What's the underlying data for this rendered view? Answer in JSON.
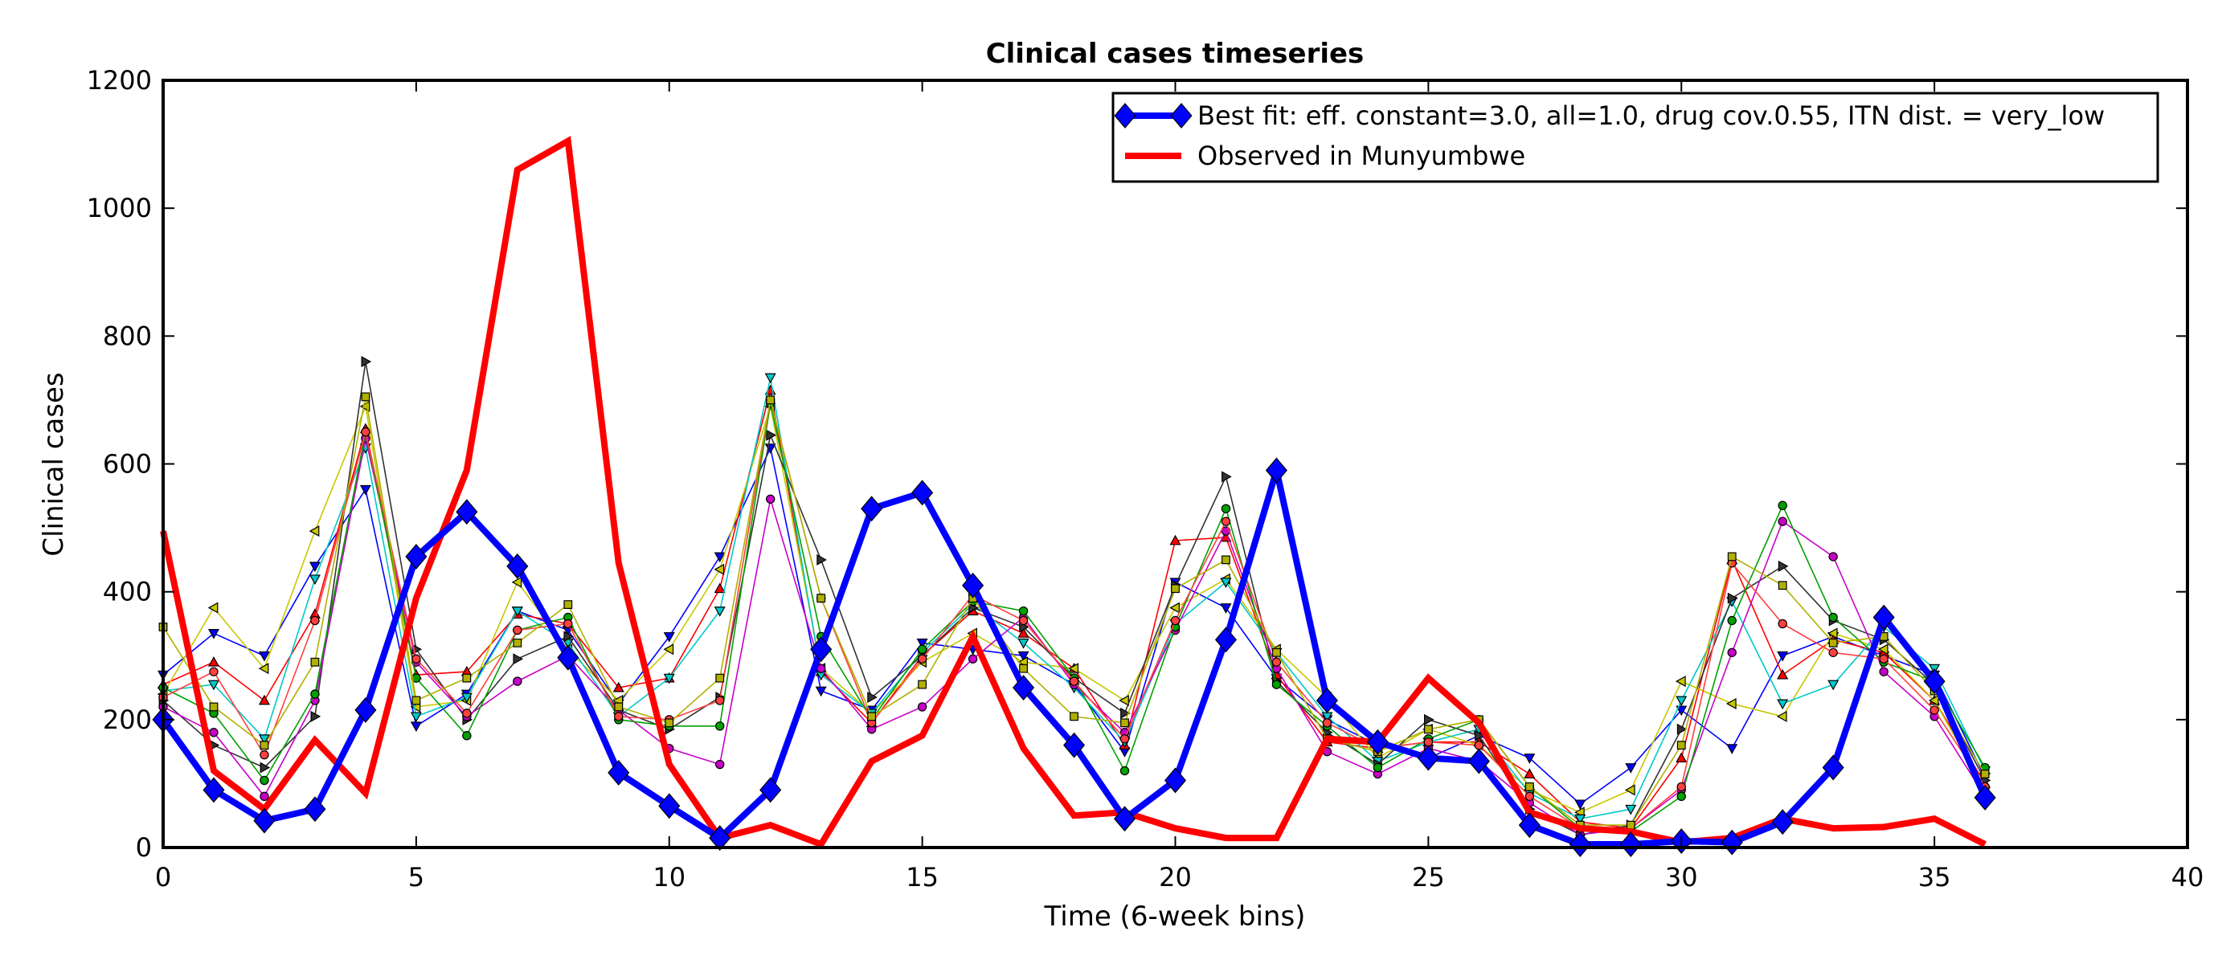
{
  "chart_data": {
    "type": "line",
    "title": "Clinical cases timeseries",
    "xlabel": "Time (6-week bins)",
    "ylabel": "Clinical cases",
    "xlim": [
      0,
      40
    ],
    "ylim": [
      0,
      1200
    ],
    "xticks": [
      0,
      5,
      10,
      15,
      20,
      25,
      30,
      35,
      40
    ],
    "yticks": [
      0,
      200,
      400,
      600,
      800,
      1000,
      1200
    ],
    "grid": false,
    "legend_position": "top-right",
    "series": [
      {
        "name": "Best fit: eff. constant=3.0, all=1.0, drug cov.0.55, ITN dist. = very_low",
        "color": "#0000ff",
        "marker": "diamond",
        "x": [
          0,
          1,
          2,
          3,
          4,
          5,
          6,
          7,
          8,
          9,
          10,
          11,
          12,
          13,
          14,
          15,
          16,
          17,
          18,
          19,
          20,
          21,
          22,
          23,
          24,
          25,
          26,
          27,
          28,
          29,
          30,
          31,
          32,
          33,
          34,
          35,
          36
        ],
        "values": [
          200,
          90,
          42,
          60,
          215,
          455,
          525,
          440,
          297,
          117,
          65,
          15,
          90,
          310,
          530,
          555,
          410,
          250,
          160,
          45,
          105,
          325,
          590,
          230,
          165,
          140,
          135,
          35,
          5,
          5,
          10,
          8,
          40,
          125,
          360,
          260,
          78
        ]
      },
      {
        "name": "Observed in Munyumbwe",
        "color": "#ff0000",
        "marker": "none",
        "x": [
          0,
          1,
          2,
          3,
          4,
          5,
          6,
          7,
          8,
          9,
          10,
          11,
          12,
          13,
          14,
          15,
          16,
          17,
          18,
          19,
          20,
          21,
          22,
          23,
          24,
          25,
          26,
          27,
          28,
          29,
          30,
          31,
          32,
          33,
          34,
          35,
          36
        ],
        "values": [
          495,
          120,
          60,
          168,
          85,
          390,
          590,
          1060,
          1105,
          445,
          130,
          15,
          35,
          5,
          135,
          175,
          330,
          155,
          50,
          55,
          30,
          15,
          15,
          170,
          165,
          265,
          195,
          55,
          30,
          25,
          8,
          15,
          45,
          30,
          32,
          45,
          5
        ]
      },
      {
        "color": "#0000ff",
        "marker": "tri_down",
        "x": [
          0,
          1,
          2,
          3,
          4,
          5,
          6,
          7,
          8,
          9,
          10,
          11,
          12,
          13,
          14,
          15,
          16,
          17,
          18,
          19,
          20,
          21,
          22,
          23,
          24,
          25,
          26,
          27,
          28,
          29,
          30,
          31,
          32,
          33,
          34,
          35,
          36
        ],
        "values": [
          270,
          335,
          300,
          440,
          560,
          190,
          240,
          370,
          340,
          225,
          330,
          455,
          625,
          245,
          215,
          320,
          310,
          300,
          255,
          150,
          415,
          375,
          265,
          200,
          160,
          140,
          175,
          140,
          68,
          125,
          215,
          155,
          300,
          330,
          300,
          270,
          110
        ]
      },
      {
        "color": "#ff0000",
        "marker": "tri_up",
        "x": [
          0,
          1,
          2,
          3,
          4,
          5,
          6,
          7,
          8,
          9,
          10,
          11,
          12,
          13,
          14,
          15,
          16,
          17,
          18,
          19,
          20,
          21,
          22,
          23,
          24,
          25,
          26,
          27,
          28,
          29,
          30,
          31,
          32,
          33,
          34,
          35,
          36
        ],
        "values": [
          255,
          290,
          230,
          365,
          655,
          270,
          275,
          365,
          350,
          250,
          265,
          405,
          715,
          275,
          195,
          300,
          370,
          335,
          280,
          160,
          480,
          485,
          270,
          165,
          155,
          165,
          165,
          115,
          40,
          30,
          140,
          450,
          270,
          325,
          305,
          230,
          100
        ]
      },
      {
        "color": "#c8c800",
        "marker": "tri_left",
        "x": [
          0,
          1,
          2,
          3,
          4,
          5,
          6,
          7,
          8,
          9,
          10,
          11,
          12,
          13,
          14,
          15,
          16,
          17,
          18,
          19,
          20,
          21,
          22,
          23,
          24,
          25,
          26,
          27,
          28,
          29,
          30,
          31,
          32,
          33,
          34,
          35,
          36
        ],
        "values": [
          240,
          375,
          280,
          495,
          690,
          220,
          230,
          415,
          310,
          230,
          310,
          435,
          690,
          280,
          210,
          290,
          335,
          290,
          280,
          230,
          375,
          420,
          310,
          235,
          140,
          185,
          160,
          90,
          55,
          90,
          260,
          225,
          205,
          335,
          310,
          230,
          90
        ]
      },
      {
        "color": "#00c8c8",
        "marker": "tri_down",
        "x": [
          0,
          1,
          2,
          3,
          4,
          5,
          6,
          7,
          8,
          9,
          10,
          11,
          12,
          13,
          14,
          15,
          16,
          17,
          18,
          19,
          20,
          21,
          22,
          23,
          24,
          25,
          26,
          27,
          28,
          29,
          30,
          31,
          32,
          33,
          34,
          35,
          36
        ],
        "values": [
          245,
          255,
          170,
          420,
          625,
          205,
          235,
          370,
          320,
          205,
          265,
          370,
          735,
          270,
          210,
          305,
          380,
          320,
          250,
          165,
          350,
          415,
          305,
          205,
          135,
          165,
          185,
          85,
          45,
          60,
          230,
          385,
          225,
          255,
          345,
          280,
          120
        ]
      },
      {
        "color": "#333333",
        "marker": "tri_right",
        "x": [
          0,
          1,
          2,
          3,
          4,
          5,
          6,
          7,
          8,
          9,
          10,
          11,
          12,
          13,
          14,
          15,
          16,
          17,
          18,
          19,
          20,
          21,
          22,
          23,
          24,
          25,
          26,
          27,
          28,
          29,
          30,
          31,
          32,
          33,
          34,
          35,
          36
        ],
        "values": [
          230,
          160,
          125,
          205,
          760,
          310,
          200,
          295,
          330,
          215,
          185,
          235,
          645,
          450,
          235,
          300,
          375,
          345,
          265,
          210,
          410,
          580,
          260,
          180,
          130,
          200,
          175,
          60,
          20,
          35,
          185,
          390,
          440,
          355,
          325,
          255,
          105
        ]
      },
      {
        "color": "#c800c8",
        "marker": "circle",
        "x": [
          0,
          1,
          2,
          3,
          4,
          5,
          6,
          7,
          8,
          9,
          10,
          11,
          12,
          13,
          14,
          15,
          16,
          17,
          18,
          19,
          20,
          21,
          22,
          23,
          24,
          25,
          26,
          27,
          28,
          29,
          30,
          31,
          32,
          33,
          34,
          35,
          36
        ],
        "values": [
          220,
          180,
          80,
          230,
          640,
          290,
          205,
          260,
          300,
          215,
          155,
          130,
          545,
          280,
          185,
          220,
          295,
          360,
          255,
          180,
          340,
          495,
          280,
          150,
          115,
          155,
          135,
          70,
          20,
          30,
          90,
          305,
          510,
          455,
          275,
          205,
          80
        ]
      },
      {
        "color": "#00a000",
        "marker": "circle",
        "x": [
          0,
          1,
          2,
          3,
          4,
          5,
          6,
          7,
          8,
          9,
          10,
          11,
          12,
          13,
          14,
          15,
          16,
          17,
          18,
          19,
          20,
          21,
          22,
          23,
          24,
          25,
          26,
          27,
          28,
          29,
          30,
          31,
          32,
          33,
          34,
          35,
          36
        ],
        "values": [
          250,
          210,
          105,
          240,
          650,
          265,
          175,
          340,
          360,
          200,
          190,
          190,
          695,
          330,
          200,
          310,
          385,
          370,
          265,
          120,
          345,
          530,
          255,
          190,
          125,
          170,
          200,
          95,
          30,
          25,
          80,
          355,
          535,
          360,
          290,
          260,
          125
        ]
      },
      {
        "color": "#ff4040",
        "marker": "circle",
        "x": [
          0,
          1,
          2,
          3,
          4,
          5,
          6,
          7,
          8,
          9,
          10,
          11,
          12,
          13,
          14,
          15,
          16,
          17,
          18,
          19,
          20,
          21,
          22,
          23,
          24,
          25,
          26,
          27,
          28,
          29,
          30,
          31,
          32,
          33,
          34,
          35,
          36
        ],
        "values": [
          235,
          275,
          145,
          355,
          650,
          295,
          210,
          340,
          350,
          205,
          200,
          230,
          700,
          390,
          195,
          295,
          395,
          355,
          260,
          170,
          355,
          510,
          290,
          195,
          155,
          165,
          160,
          80,
          30,
          30,
          95,
          445,
          350,
          305,
          295,
          215,
          95
        ]
      },
      {
        "color": "#b0b000",
        "marker": "square",
        "x": [
          0,
          1,
          2,
          3,
          4,
          5,
          6,
          7,
          8,
          9,
          10,
          11,
          12,
          13,
          14,
          15,
          16,
          17,
          18,
          19,
          20,
          21,
          22,
          23,
          24,
          25,
          26,
          27,
          28,
          29,
          30,
          31,
          32,
          33,
          34,
          35,
          36
        ],
        "values": [
          345,
          220,
          160,
          290,
          705,
          230,
          265,
          320,
          380,
          220,
          195,
          265,
          700,
          390,
          205,
          255,
          390,
          280,
          205,
          195,
          405,
          450,
          305,
          170,
          150,
          185,
          200,
          95,
          35,
          35,
          160,
          455,
          410,
          320,
          330,
          245,
          115
        ]
      }
    ]
  }
}
